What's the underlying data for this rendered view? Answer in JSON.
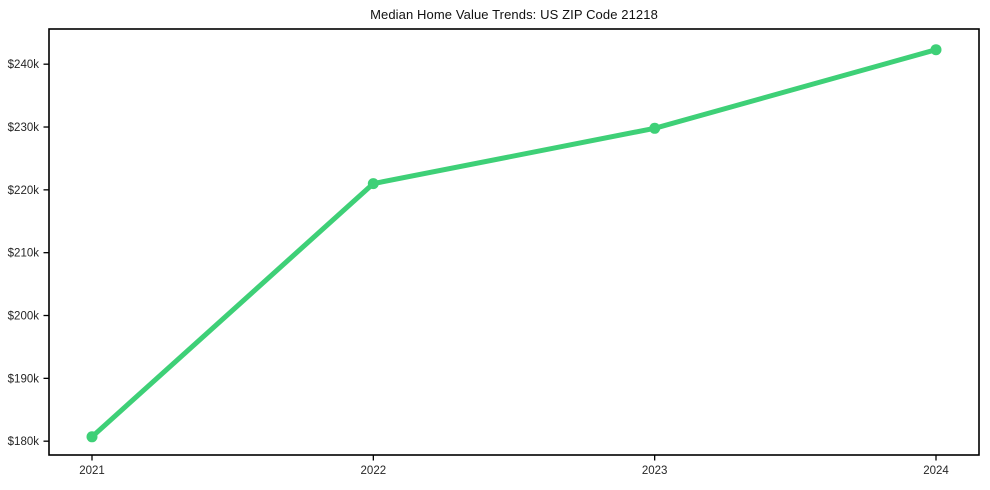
{
  "chart_data": {
    "type": "line",
    "title": "Median Home Value Trends: US ZIP Code 21218",
    "x_tick_labels": [
      "2021",
      "2022",
      "2023",
      "2024"
    ],
    "series": [
      {
        "name": "Median Home Value",
        "values": [
          180700,
          221000,
          229800,
          242300
        ]
      }
    ],
    "y_tick_values": [
      180000,
      190000,
      200000,
      210000,
      220000,
      230000,
      240000
    ],
    "y_tick_labels": [
      "$180k",
      "$190k",
      "$200k",
      "$210k",
      "$220k",
      "$230k",
      "$240k"
    ],
    "ylim": [
      177800,
      245600
    ],
    "xlabel": "",
    "ylabel": "",
    "grid": false,
    "legend": "none",
    "line_color": "#3ed077",
    "marker_color": "#3ed077",
    "spine_color": "#000000",
    "tick_text_color": "#262626",
    "title_color": "#111111"
  }
}
